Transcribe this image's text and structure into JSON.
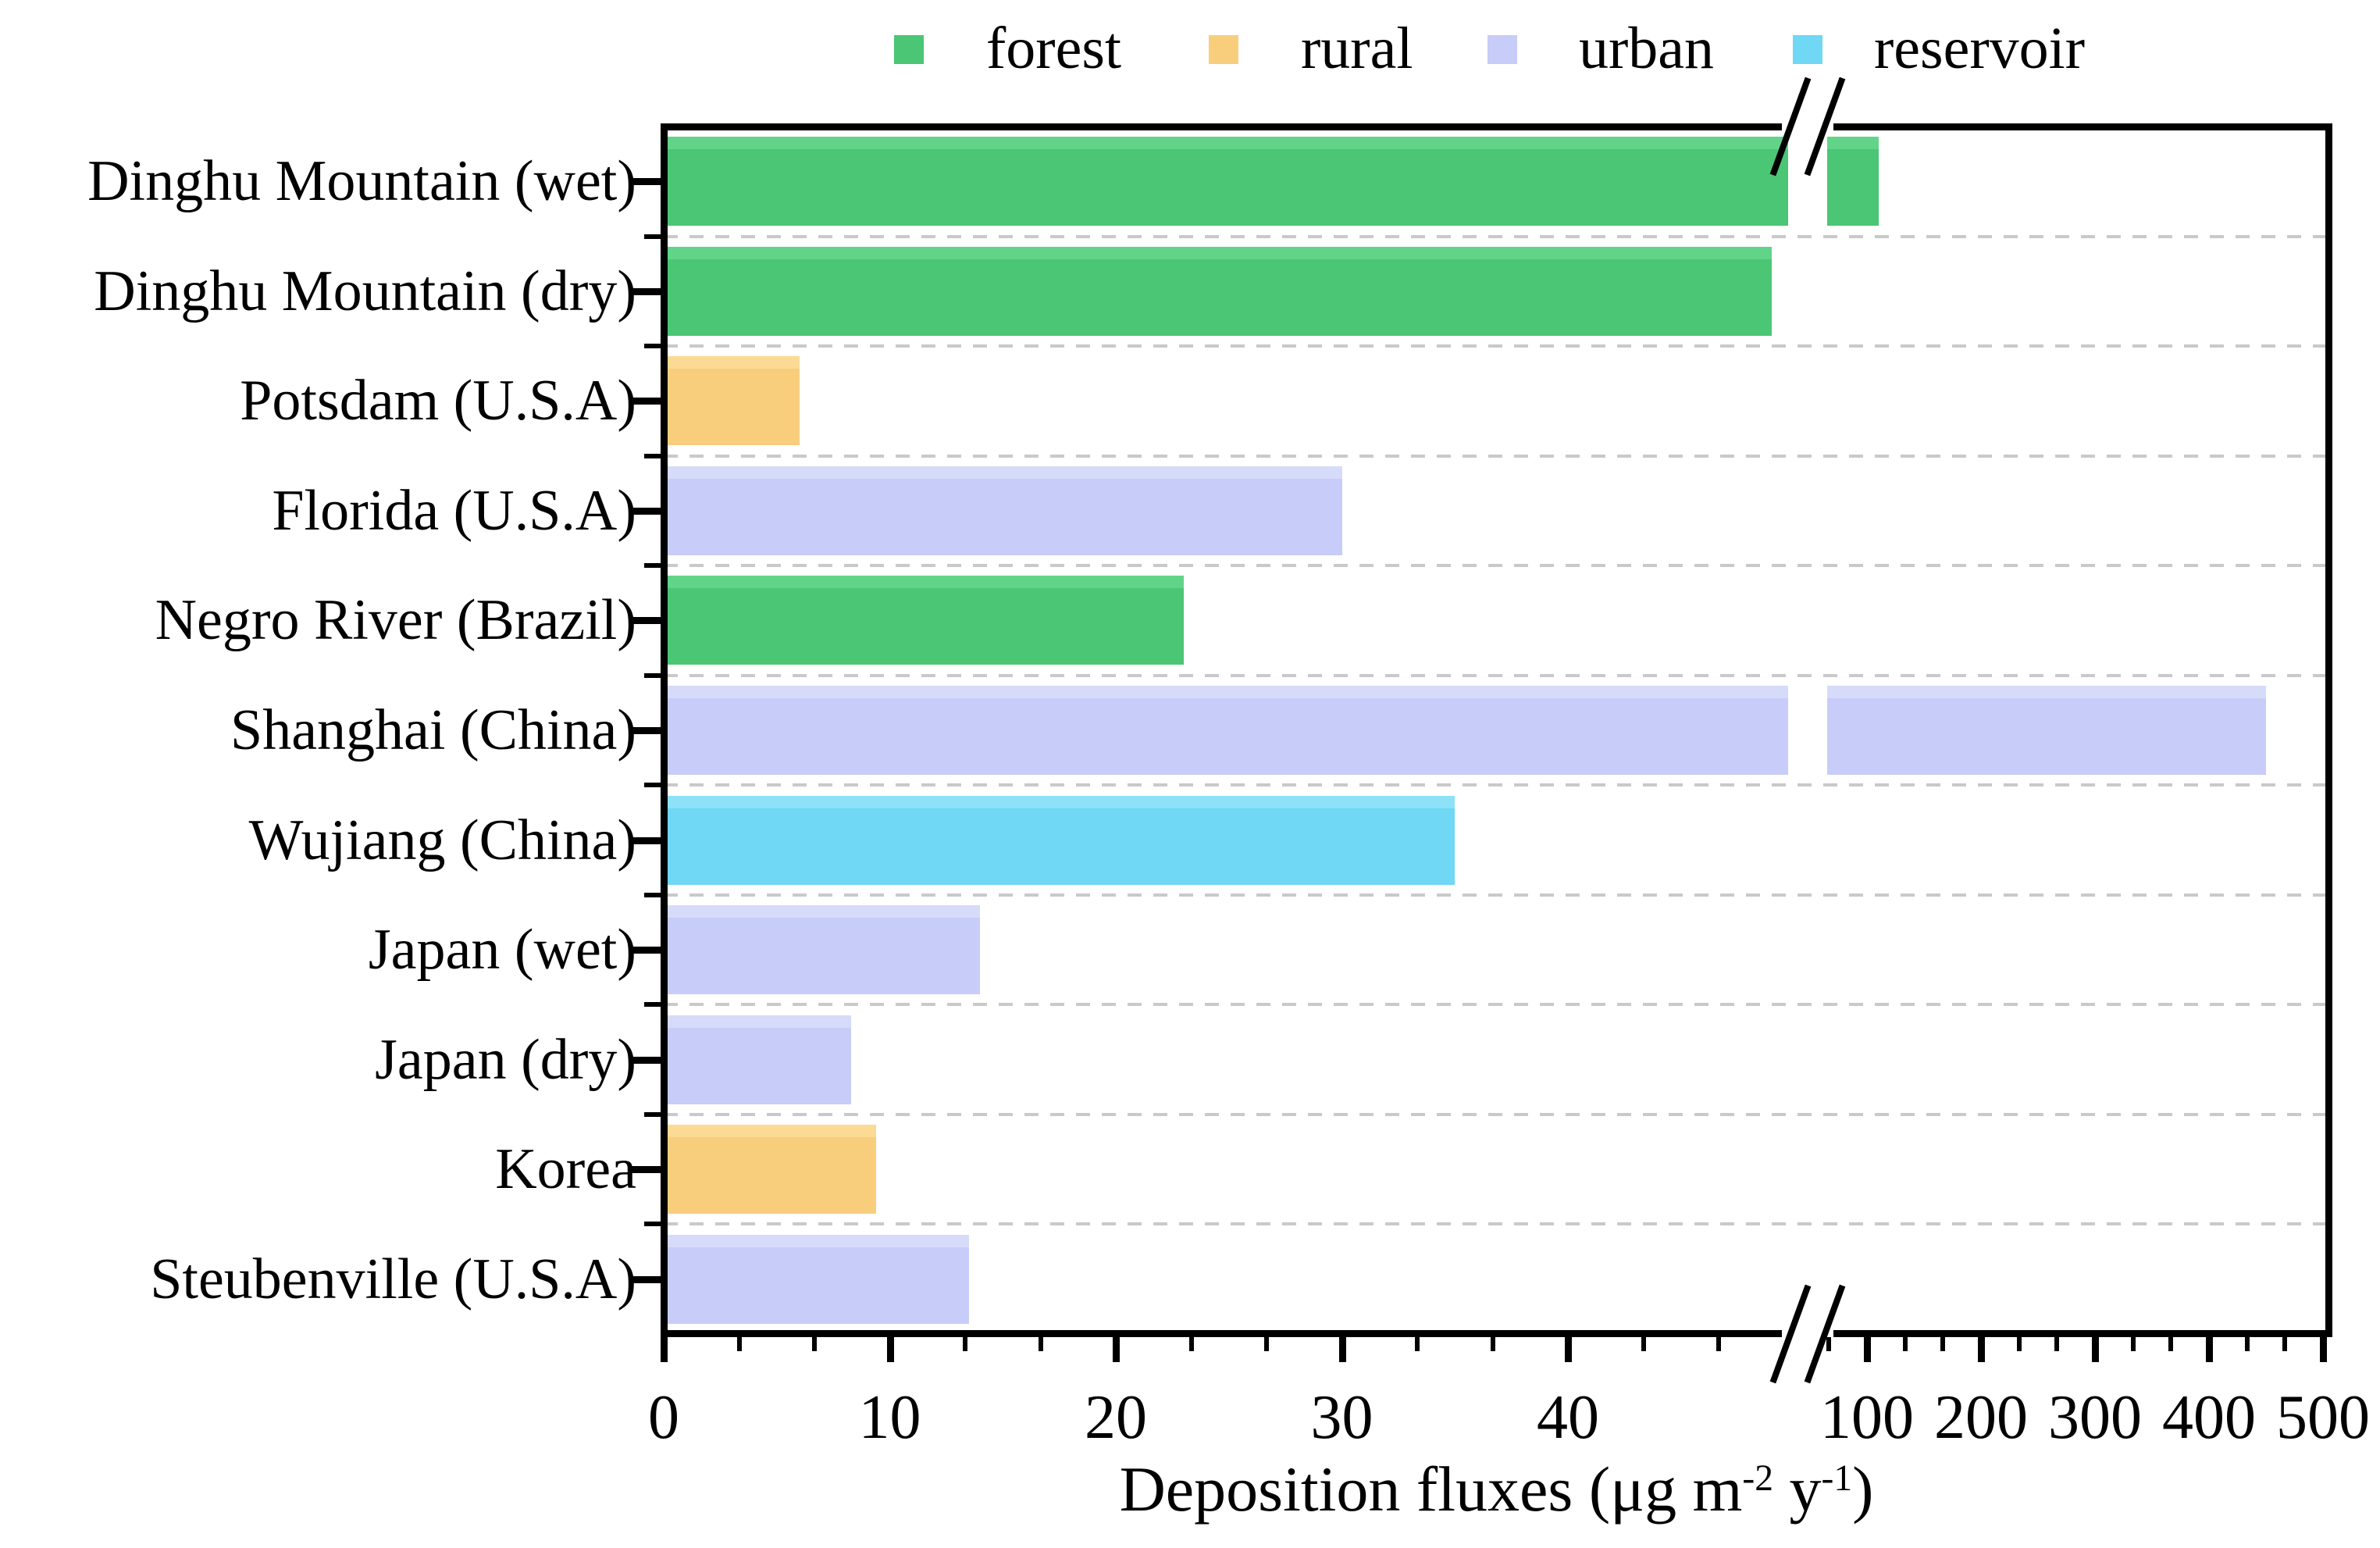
{
  "legend": {
    "items": [
      {
        "label": "forest",
        "color": "#4ac674",
        "color_light": "#62d489"
      },
      {
        "label": "rural",
        "color": "#f8ce7d",
        "color_light": "#fbda93"
      },
      {
        "label": "urban",
        "color": "#c7cdf8",
        "color_light": "#d6dbfa"
      },
      {
        "label": "reservoir",
        "color": "#70d7f4",
        "color_light": "#8de2f7"
      }
    ]
  },
  "chart_data": {
    "type": "bar",
    "orientation": "horizontal",
    "title": "",
    "xlabel": "Deposition fluxes (μg m⁻² y⁻¹)",
    "ylabel": "",
    "categories": [
      "Dinghu Mountain (wet)",
      "Dinghu Mountain (dry)",
      "Potsdam (U.S.A)",
      "Florida (U.S.A)",
      "Negro River (Brazil)",
      "Shanghai (China)",
      "Wujiang (China)",
      "Japan (wet)",
      "Japan (dry)",
      "Korea",
      "Steubenville (U.S.A)"
    ],
    "series": [
      {
        "name": "Deposition flux",
        "values": [
          110,
          49,
          6,
          30,
          23,
          450,
          35,
          14,
          8.3,
          9.4,
          13.5
        ]
      }
    ],
    "bar_groups": [
      "forest",
      "forest",
      "rural",
      "urban",
      "forest",
      "urban",
      "reservoir",
      "urban",
      "urban",
      "rural",
      "urban"
    ],
    "x_axis": {
      "break_at_value": 50,
      "linear_tick_labels": [
        "0",
        "10",
        "20",
        "30",
        "40"
      ],
      "linear_tick_values": [
        0,
        10,
        20,
        30,
        40
      ],
      "compressed_tick_labels": [
        "100",
        "200",
        "300",
        "400",
        "500"
      ],
      "compressed_tick_values": [
        100,
        200,
        300,
        400,
        500
      ],
      "range_left": [
        0,
        50
      ],
      "range_right": [
        50,
        500
      ],
      "grid": "dashed-horizontal-row-separators",
      "legend_position": "top"
    },
    "xlabel_parts": {
      "pre": "Deposition fluxes (μg m",
      "sup1": "-2",
      "mid": " y",
      "sup2": "-1",
      "post": ")"
    }
  }
}
